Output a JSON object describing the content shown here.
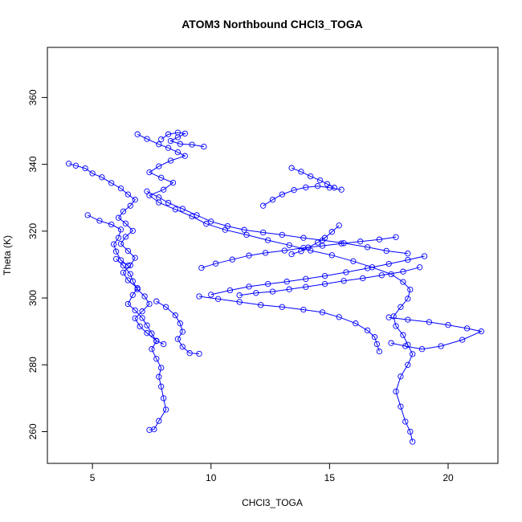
{
  "chart_data": {
    "type": "scatter",
    "title": "ATOM3 Northbound CHCl3_TOGA",
    "xlabel": "CHCl3_TOGA",
    "ylabel": "Theta (K)",
    "xlim": [
      3.1,
      22.1
    ],
    "ylim": [
      250.5,
      375
    ],
    "xticks": [
      5,
      10,
      15,
      20
    ],
    "yticks": [
      260,
      280,
      300,
      320,
      340,
      360
    ],
    "grid": false,
    "color": "#0000ff",
    "marker": "open-circle",
    "connected": true,
    "series": [
      {
        "values": [
          [
            4.0,
            340.2
          ],
          [
            4.3,
            339.6
          ],
          [
            4.7,
            338.8
          ],
          [
            5.0,
            337.3
          ],
          [
            5.4,
            336.1
          ],
          [
            5.8,
            334.4
          ],
          [
            6.2,
            332.8
          ],
          [
            6.5,
            331.0
          ],
          [
            6.8,
            329.4
          ],
          [
            6.6,
            327.6
          ],
          [
            6.3,
            325.9
          ],
          [
            6.1,
            324.0
          ],
          [
            6.4,
            322.3
          ],
          [
            6.7,
            320.1
          ],
          [
            6.4,
            318.3
          ],
          [
            6.2,
            316.2
          ],
          [
            6.5,
            314.1
          ],
          [
            6.8,
            312.0
          ],
          [
            6.6,
            309.8
          ],
          [
            6.3,
            307.6
          ],
          [
            6.5,
            305.3
          ],
          [
            6.9,
            303.0
          ],
          [
            6.7,
            300.9
          ],
          [
            6.5,
            298.2
          ],
          [
            6.8,
            296.3
          ],
          [
            7.1,
            294.0
          ],
          [
            7.3,
            291.8
          ],
          [
            7.5,
            289.4
          ],
          [
            7.7,
            287.1
          ],
          [
            7.5,
            284.7
          ],
          [
            7.7,
            281.8
          ],
          [
            7.9,
            279.1
          ],
          [
            7.8,
            276.4
          ],
          [
            7.9,
            273.5
          ],
          [
            8.0,
            270.0
          ],
          [
            8.1,
            266.6
          ],
          [
            7.8,
            263.2
          ],
          [
            7.6,
            260.7
          ],
          [
            7.4,
            260.5
          ]
        ]
      },
      {
        "values": [
          [
            6.9,
            349.0
          ],
          [
            7.3,
            347.6
          ],
          [
            7.8,
            346.0
          ],
          [
            8.2,
            344.9
          ],
          [
            8.6,
            343.6
          ],
          [
            8.9,
            342.5
          ],
          [
            8.3,
            341.1
          ],
          [
            7.8,
            339.4
          ],
          [
            7.4,
            337.6
          ],
          [
            7.9,
            336.0
          ],
          [
            8.4,
            334.5
          ],
          [
            8.0,
            332.4
          ],
          [
            7.4,
            330.7
          ],
          [
            7.8,
            328.6
          ],
          [
            8.5,
            326.5
          ],
          [
            9.2,
            324.4
          ],
          [
            9.8,
            322.2
          ],
          [
            10.6,
            320.4
          ],
          [
            11.5,
            318.9
          ],
          [
            12.4,
            317.3
          ],
          [
            13.3,
            315.8
          ],
          [
            14.2,
            314.2
          ],
          [
            15.1,
            312.8
          ],
          [
            16.0,
            311.0
          ],
          [
            16.8,
            309.2
          ],
          [
            17.6,
            307.1
          ],
          [
            18.1,
            304.8
          ],
          [
            18.4,
            302.5
          ],
          [
            18.3,
            299.8
          ],
          [
            18.0,
            297.3
          ],
          [
            17.7,
            294.5
          ],
          [
            17.8,
            291.6
          ],
          [
            18.1,
            288.9
          ],
          [
            18.3,
            286.0
          ],
          [
            18.5,
            283.2
          ],
          [
            18.3,
            280.0
          ],
          [
            18.0,
            276.5
          ],
          [
            17.8,
            272.0
          ],
          [
            18.0,
            267.5
          ],
          [
            18.2,
            263.0
          ],
          [
            18.4,
            260.0
          ],
          [
            18.5,
            257.0
          ]
        ]
      },
      {
        "values": [
          [
            9.6,
            309.0
          ],
          [
            10.2,
            310.3
          ],
          [
            10.9,
            311.5
          ],
          [
            11.6,
            312.7
          ],
          [
            12.3,
            313.5
          ],
          [
            13.1,
            314.2
          ],
          [
            13.9,
            315.0
          ],
          [
            14.7,
            315.6
          ],
          [
            15.5,
            316.3
          ],
          [
            16.3,
            316.9
          ],
          [
            17.1,
            317.5
          ],
          [
            17.8,
            318.2
          ]
        ]
      },
      {
        "values": [
          [
            10.0,
            301.0
          ],
          [
            10.8,
            302.3
          ],
          [
            11.6,
            303.4
          ],
          [
            12.4,
            304.2
          ],
          [
            13.2,
            304.9
          ],
          [
            14.0,
            305.7
          ],
          [
            14.8,
            306.6
          ],
          [
            15.7,
            307.7
          ],
          [
            16.6,
            308.9
          ],
          [
            17.5,
            310.2
          ],
          [
            18.3,
            311.4
          ],
          [
            19.0,
            312.5
          ]
        ]
      },
      {
        "values": [
          [
            12.2,
            327.6
          ],
          [
            12.6,
            329.4
          ],
          [
            13.0,
            331.0
          ],
          [
            13.5,
            332.3
          ],
          [
            14.0,
            333.1
          ],
          [
            14.5,
            333.5
          ],
          [
            15.0,
            333.0
          ],
          [
            15.5,
            332.4
          ]
        ]
      },
      {
        "values": [
          [
            13.4,
            338.9
          ],
          [
            13.8,
            337.8
          ],
          [
            14.2,
            336.4
          ],
          [
            14.6,
            335.2
          ],
          [
            14.9,
            334.1
          ],
          [
            15.2,
            333.0
          ]
        ]
      },
      {
        "values": [
          [
            7.7,
            299.0
          ],
          [
            8.1,
            297.3
          ],
          [
            8.5,
            294.8
          ],
          [
            8.7,
            292.4
          ],
          [
            8.8,
            289.9
          ],
          [
            8.6,
            287.7
          ],
          [
            8.8,
            285.4
          ],
          [
            9.1,
            283.5
          ],
          [
            9.5,
            283.3
          ]
        ]
      },
      {
        "values": [
          [
            4.8,
            324.8
          ],
          [
            5.3,
            323.1
          ],
          [
            5.8,
            322.0
          ],
          [
            6.2,
            320.5
          ],
          [
            6.1,
            318.0
          ],
          [
            5.9,
            316.1
          ],
          [
            6.0,
            313.9
          ],
          [
            6.2,
            311.3
          ],
          [
            6.5,
            309.7
          ]
        ]
      },
      {
        "values": [
          [
            17.5,
            294.2
          ],
          [
            18.3,
            293.5
          ],
          [
            19.2,
            292.8
          ],
          [
            20.0,
            291.9
          ],
          [
            20.8,
            290.9
          ],
          [
            21.4,
            290.0
          ],
          [
            20.6,
            287.5
          ],
          [
            19.7,
            285.6
          ],
          [
            18.9,
            284.7
          ],
          [
            18.2,
            285.6
          ],
          [
            17.6,
            286.5
          ]
        ]
      },
      {
        "values": [
          [
            15.4,
            321.7
          ],
          [
            15.1,
            319.8
          ],
          [
            14.8,
            318.0
          ],
          [
            14.5,
            316.6
          ],
          [
            14.1,
            315.1
          ],
          [
            13.8,
            314.0
          ],
          [
            13.4,
            313.1
          ]
        ]
      },
      {
        "values": [
          [
            9.5,
            300.5
          ],
          [
            10.3,
            299.7
          ],
          [
            11.2,
            298.8
          ],
          [
            12.1,
            297.9
          ],
          [
            13.0,
            297.3
          ],
          [
            13.9,
            296.5
          ],
          [
            14.7,
            295.7
          ],
          [
            15.4,
            294.3
          ],
          [
            16.1,
            292.4
          ],
          [
            16.6,
            290.3
          ],
          [
            16.9,
            288.3
          ],
          [
            17.0,
            286.2
          ],
          [
            17.1,
            284.0
          ]
        ]
      },
      {
        "values": [
          [
            7.3,
            331.9
          ],
          [
            7.8,
            330.1
          ],
          [
            8.2,
            328.5
          ],
          [
            8.8,
            326.7
          ],
          [
            9.4,
            324.8
          ],
          [
            10.0,
            322.9
          ],
          [
            10.7,
            321.5
          ],
          [
            11.4,
            320.4
          ],
          [
            12.2,
            319.6
          ],
          [
            13.0,
            318.9
          ],
          [
            13.9,
            318.0
          ],
          [
            14.7,
            317.3
          ],
          [
            15.6,
            316.4
          ],
          [
            16.6,
            315.2
          ],
          [
            17.4,
            314.1
          ],
          [
            18.3,
            313.3
          ]
        ]
      },
      {
        "values": [
          [
            7.9,
            347.5
          ],
          [
            8.2,
            349.0
          ],
          [
            8.6,
            349.5
          ],
          [
            8.9,
            349.2
          ],
          [
            8.6,
            348.1
          ],
          [
            8.3,
            347.0
          ],
          [
            8.7,
            346.1
          ],
          [
            9.2,
            345.9
          ],
          [
            9.7,
            345.3
          ]
        ]
      },
      {
        "values": [
          [
            11.2,
            300.8
          ],
          [
            11.9,
            301.5
          ],
          [
            12.6,
            301.9
          ],
          [
            13.3,
            302.6
          ],
          [
            14.0,
            303.3
          ],
          [
            14.8,
            304.2
          ],
          [
            15.6,
            305.1
          ],
          [
            16.4,
            305.9
          ],
          [
            17.2,
            306.8
          ],
          [
            18.1,
            307.9
          ],
          [
            18.8,
            309.2
          ]
        ]
      },
      {
        "values": [
          [
            6.0,
            311.7
          ],
          [
            6.3,
            309.7
          ],
          [
            6.6,
            307.2
          ],
          [
            6.7,
            305.0
          ],
          [
            6.9,
            302.6
          ],
          [
            7.2,
            300.5
          ],
          [
            7.4,
            298.2
          ],
          [
            7.1,
            296.0
          ],
          [
            6.8,
            293.9
          ],
          [
            7.0,
            291.5
          ],
          [
            7.3,
            289.5
          ],
          [
            7.7,
            287.2
          ],
          [
            8.0,
            286.2
          ]
        ]
      }
    ]
  }
}
